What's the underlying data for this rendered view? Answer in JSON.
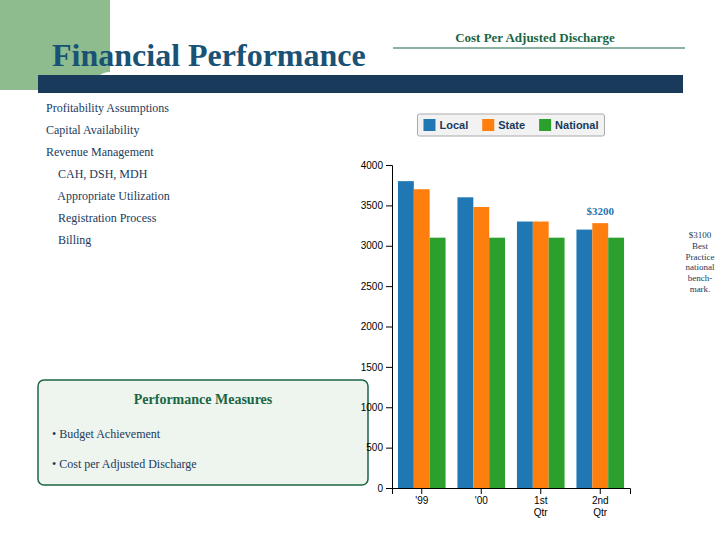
{
  "page": {
    "title": "Financial Performance",
    "text_lines": [
      "Profitability Assumptions",
      "Capital Availability",
      "Revenue Management",
      "    CAH, DSH, MDH",
      "    Appropriate Utilization",
      "    Registration Process",
      "    Billing"
    ],
    "panel_title": "Performance Measures",
    "panel_items": [
      "• Budget Achievement",
      "• Cost per Adjusted Discharge"
    ]
  },
  "chart_data": {
    "type": "bar",
    "title": "Cost Per Adjusted Discharge",
    "categories": [
      "'99",
      "'00",
      "1st\nQtr",
      "2nd\nQtr"
    ],
    "series": [
      {
        "name": "Local",
        "values": [
          3800,
          3600,
          3300,
          3200
        ]
      },
      {
        "name": "State",
        "values": [
          3700,
          3480,
          3300,
          3280
        ]
      },
      {
        "name": "National",
        "values": [
          3100,
          3100,
          3100,
          3100
        ]
      }
    ],
    "ylim": [
      0,
      4000
    ],
    "yticks": [
      0,
      500,
      1000,
      1500,
      2000,
      2500,
      3000,
      3500,
      4000
    ],
    "legend": "top",
    "annotations": [
      "$3200",
      "$3100\nBest\nPractice\nnational\nbench-\nmark."
    ]
  }
}
